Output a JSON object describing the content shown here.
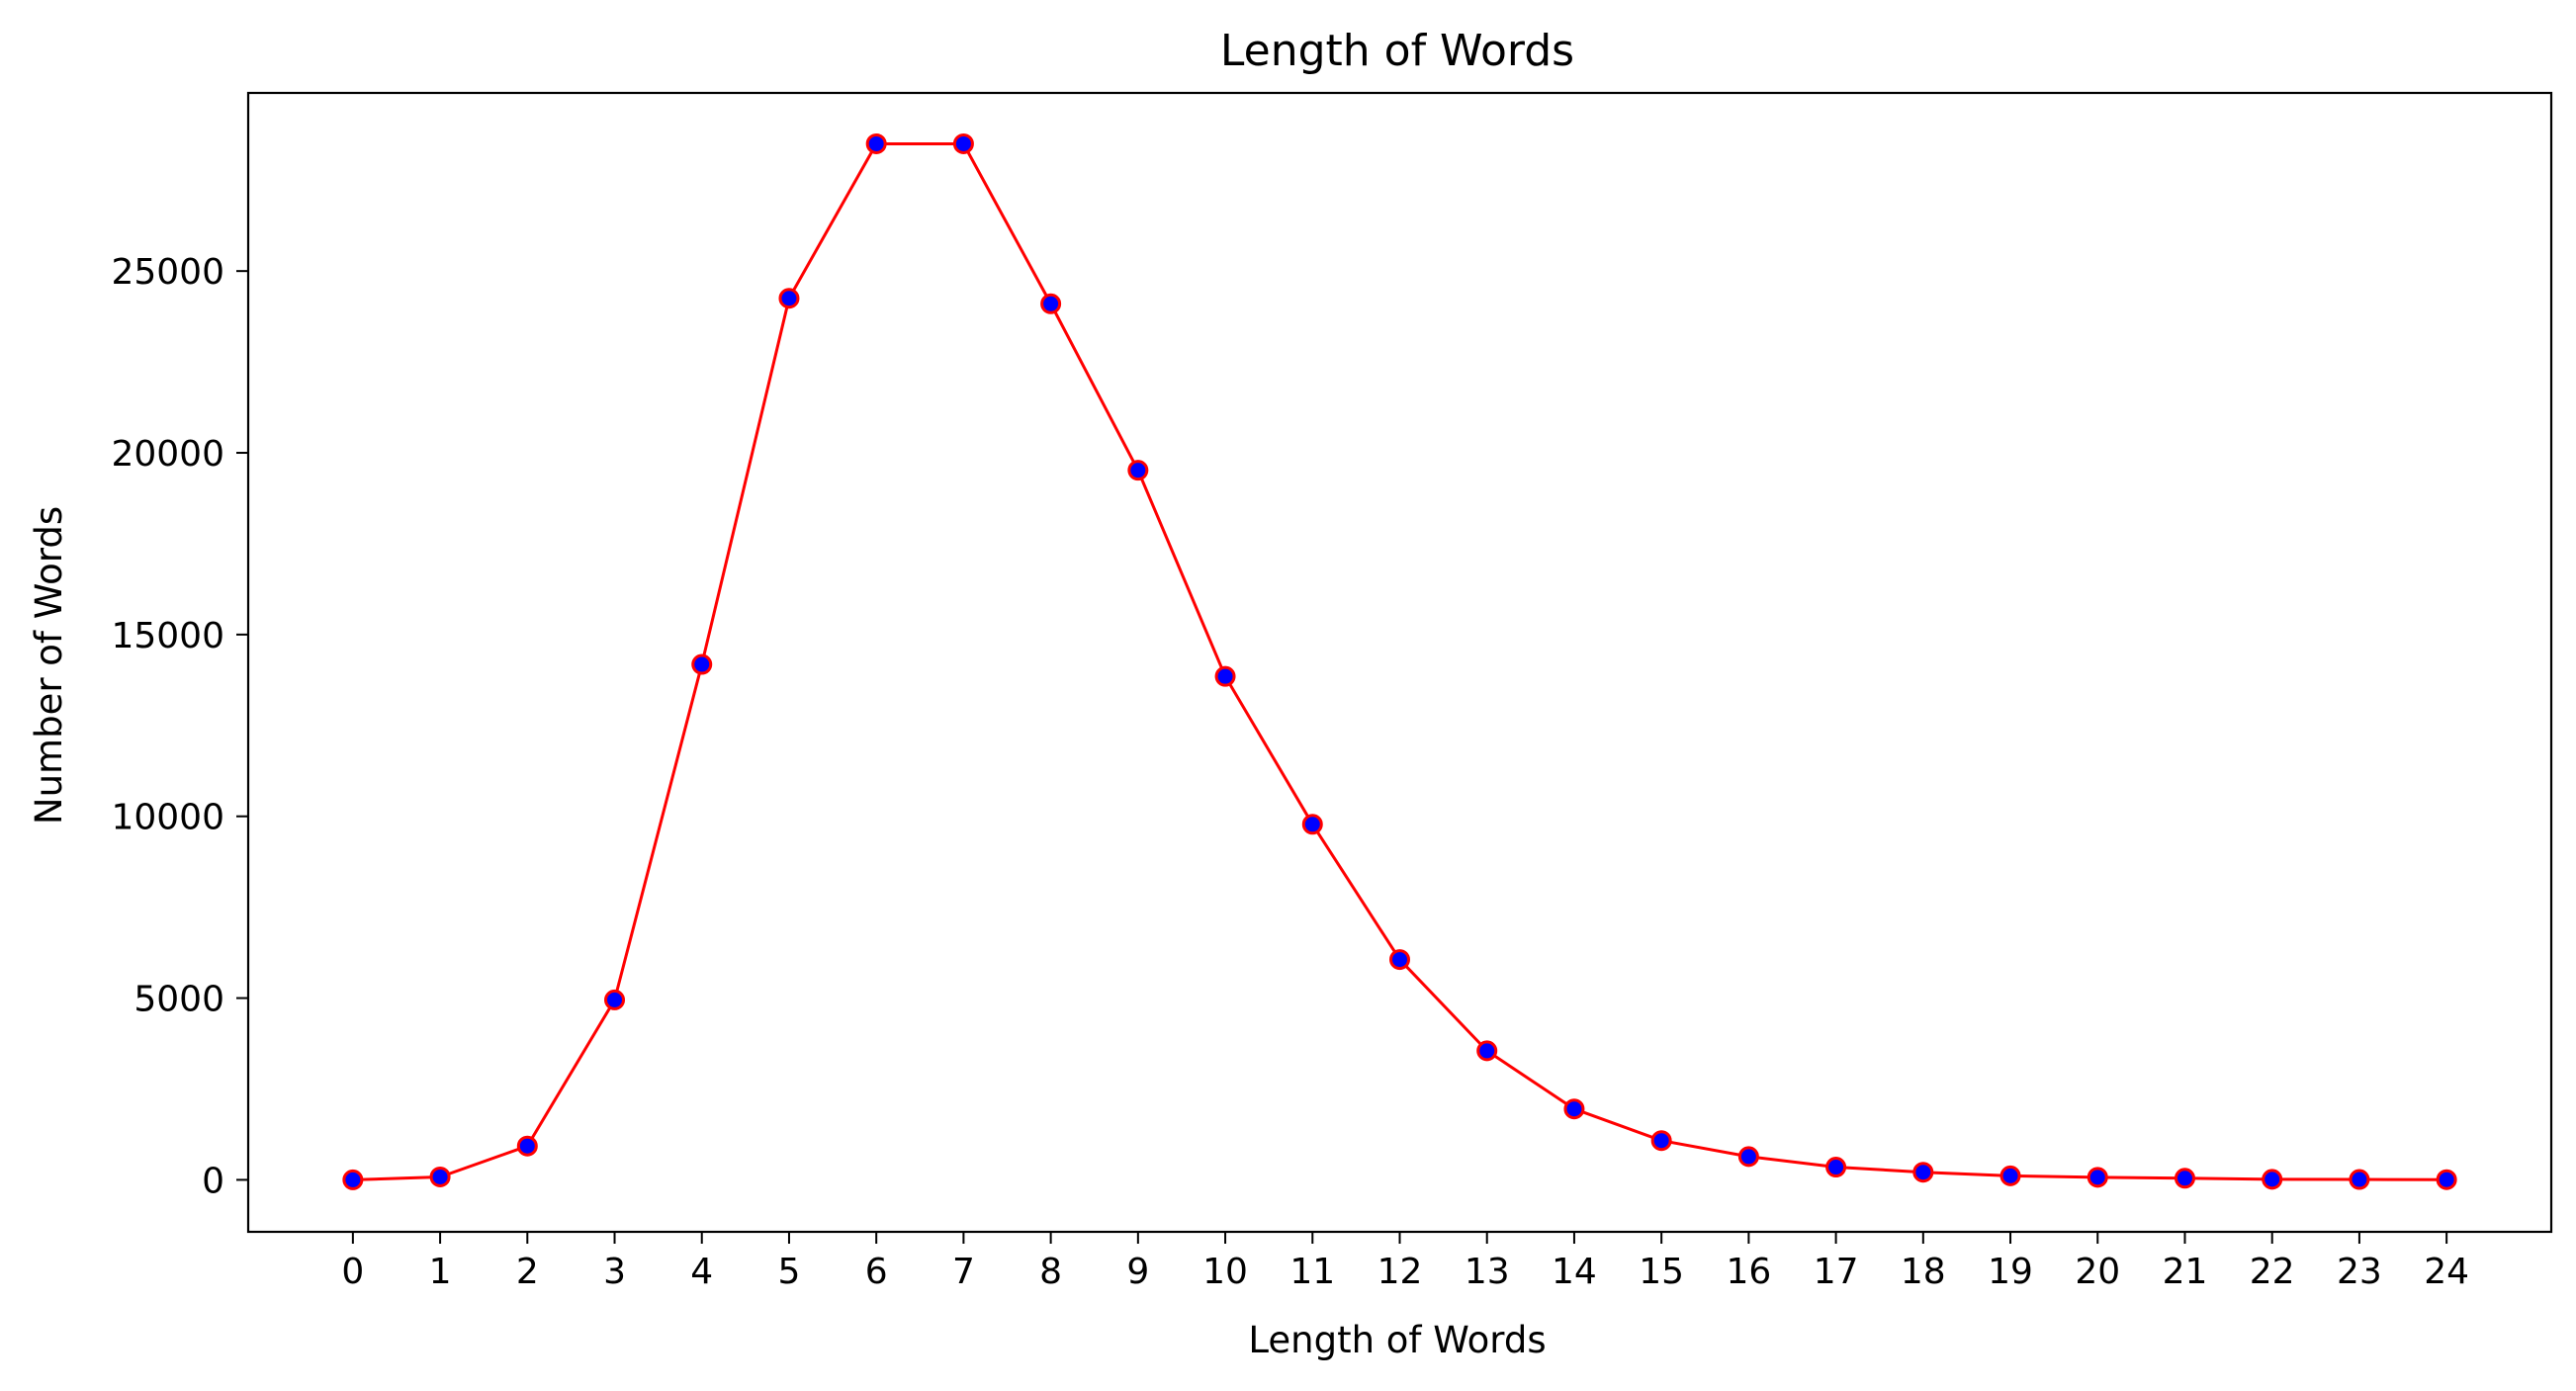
{
  "chart_data": {
    "type": "line",
    "title": "Length of Words",
    "xlabel": "Length of Words",
    "ylabel": "Number of Words",
    "x": [
      0,
      1,
      2,
      3,
      4,
      5,
      6,
      7,
      8,
      9,
      10,
      11,
      12,
      13,
      14,
      15,
      16,
      17,
      18,
      19,
      20,
      21,
      22,
      23,
      24
    ],
    "series": [
      {
        "values": [
          0,
          80,
          930,
          4950,
          14180,
          24250,
          28500,
          28500,
          24100,
          19520,
          13850,
          9780,
          6060,
          3550,
          1950,
          1080,
          640,
          350,
          210,
          110,
          70,
          45,
          15,
          10,
          5
        ],
        "line_color": "#ff0000",
        "marker_face": "#0000ff",
        "marker_edge": "#ff0000"
      }
    ],
    "xticks": [
      "0",
      "1",
      "2",
      "3",
      "4",
      "5",
      "6",
      "7",
      "8",
      "9",
      "10",
      "11",
      "12",
      "13",
      "14",
      "15",
      "16",
      "17",
      "18",
      "19",
      "20",
      "21",
      "22",
      "23",
      "24"
    ],
    "yticks": [
      0,
      5000,
      10000,
      15000,
      20000,
      25000
    ],
    "xlim": [
      -1.2,
      25.2
    ],
    "ylim": [
      -1430,
      29900
    ],
    "grid": false,
    "legend": "none"
  }
}
